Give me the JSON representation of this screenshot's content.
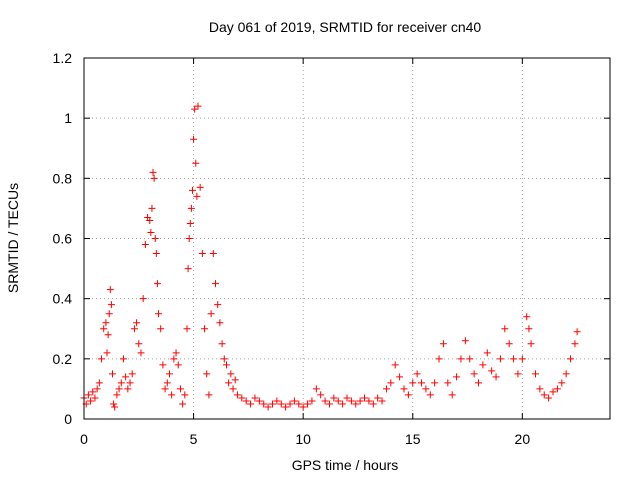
{
  "chart_data": {
    "type": "scatter",
    "title": "Day 061 of 2019, SRMTID for receiver cn40",
    "xlabel": "GPS time / hours",
    "ylabel": "SRMTID / TECUs",
    "xlim": [
      0,
      24
    ],
    "ylim": [
      0,
      1.2
    ],
    "xticks": [
      0,
      5,
      10,
      15,
      20
    ],
    "xtick_labels": [
      "0",
      "5",
      "10",
      "15",
      "20"
    ],
    "yticks": [
      0,
      0.2,
      0.4,
      0.6,
      0.8,
      1,
      1.2
    ],
    "ytick_labels": [
      "0",
      "0.2",
      "0.4",
      "0.6",
      "0.8",
      "1",
      "1.2"
    ],
    "grid": true,
    "marker": "+",
    "marker_color": "#ff0000",
    "series": [
      {
        "name": "SRMTID",
        "x": [
          0.0,
          0.1,
          0.2,
          0.3,
          0.4,
          0.5,
          0.6,
          0.7,
          0.8,
          0.9,
          1.0,
          1.05,
          1.1,
          1.15,
          1.2,
          1.25,
          1.3,
          1.35,
          1.4,
          1.5,
          1.6,
          1.7,
          1.8,
          1.9,
          2.0,
          2.1,
          2.2,
          2.3,
          2.4,
          2.5,
          2.6,
          2.7,
          2.8,
          2.9,
          3.0,
          3.05,
          3.1,
          3.15,
          3.2,
          3.25,
          3.3,
          3.35,
          3.4,
          3.5,
          3.6,
          3.7,
          3.8,
          3.9,
          4.0,
          4.1,
          4.2,
          4.3,
          4.4,
          4.5,
          4.6,
          4.7,
          4.75,
          4.8,
          4.85,
          4.9,
          4.95,
          5.0,
          5.05,
          5.1,
          5.15,
          5.2,
          5.3,
          5.4,
          5.5,
          5.6,
          5.7,
          5.8,
          5.9,
          6.0,
          6.1,
          6.2,
          6.3,
          6.4,
          6.5,
          6.6,
          6.7,
          6.8,
          6.9,
          7.0,
          7.2,
          7.4,
          7.6,
          7.8,
          8.0,
          8.2,
          8.4,
          8.6,
          8.8,
          9.0,
          9.2,
          9.4,
          9.6,
          9.8,
          10.0,
          10.2,
          10.4,
          10.6,
          10.8,
          11.0,
          11.2,
          11.4,
          11.6,
          11.8,
          12.0,
          12.2,
          12.4,
          12.6,
          12.8,
          13.0,
          13.2,
          13.4,
          13.6,
          13.8,
          14.0,
          14.2,
          14.4,
          14.6,
          14.8,
          15.0,
          15.2,
          15.4,
          15.6,
          15.8,
          16.0,
          16.2,
          16.4,
          16.6,
          16.8,
          17.0,
          17.2,
          17.4,
          17.6,
          17.8,
          18.0,
          18.2,
          18.4,
          18.6,
          18.8,
          19.0,
          19.2,
          19.4,
          19.6,
          19.8,
          20.0,
          20.2,
          20.3,
          20.4,
          20.6,
          20.8,
          21.0,
          21.2,
          21.4,
          21.6,
          21.8,
          22.0,
          22.2,
          22.4,
          22.5
        ],
        "y": [
          0.07,
          0.05,
          0.08,
          0.06,
          0.09,
          0.07,
          0.1,
          0.12,
          0.2,
          0.3,
          0.32,
          0.22,
          0.28,
          0.35,
          0.43,
          0.38,
          0.15,
          0.05,
          0.04,
          0.08,
          0.1,
          0.12,
          0.2,
          0.14,
          0.1,
          0.12,
          0.15,
          0.3,
          0.32,
          0.25,
          0.22,
          0.4,
          0.58,
          0.67,
          0.66,
          0.62,
          0.7,
          0.82,
          0.8,
          0.6,
          0.55,
          0.45,
          0.35,
          0.3,
          0.18,
          0.1,
          0.12,
          0.15,
          0.08,
          0.2,
          0.22,
          0.18,
          0.1,
          0.05,
          0.08,
          0.3,
          0.5,
          0.6,
          0.65,
          0.7,
          0.76,
          0.93,
          1.03,
          0.85,
          0.74,
          1.04,
          0.77,
          0.55,
          0.3,
          0.15,
          0.08,
          0.35,
          0.55,
          0.45,
          0.38,
          0.32,
          0.25,
          0.2,
          0.18,
          0.12,
          0.15,
          0.1,
          0.13,
          0.08,
          0.07,
          0.06,
          0.05,
          0.07,
          0.06,
          0.05,
          0.04,
          0.05,
          0.06,
          0.05,
          0.04,
          0.05,
          0.06,
          0.05,
          0.04,
          0.05,
          0.06,
          0.1,
          0.08,
          0.06,
          0.05,
          0.07,
          0.06,
          0.05,
          0.07,
          0.06,
          0.05,
          0.06,
          0.07,
          0.06,
          0.05,
          0.07,
          0.06,
          0.1,
          0.12,
          0.18,
          0.14,
          0.1,
          0.08,
          0.12,
          0.15,
          0.12,
          0.1,
          0.08,
          0.12,
          0.2,
          0.25,
          0.12,
          0.08,
          0.14,
          0.2,
          0.26,
          0.2,
          0.15,
          0.12,
          0.18,
          0.22,
          0.16,
          0.14,
          0.2,
          0.3,
          0.25,
          0.2,
          0.15,
          0.2,
          0.34,
          0.3,
          0.25,
          0.15,
          0.1,
          0.08,
          0.07,
          0.09,
          0.1,
          0.12,
          0.15,
          0.2,
          0.25,
          0.29
        ]
      }
    ]
  }
}
